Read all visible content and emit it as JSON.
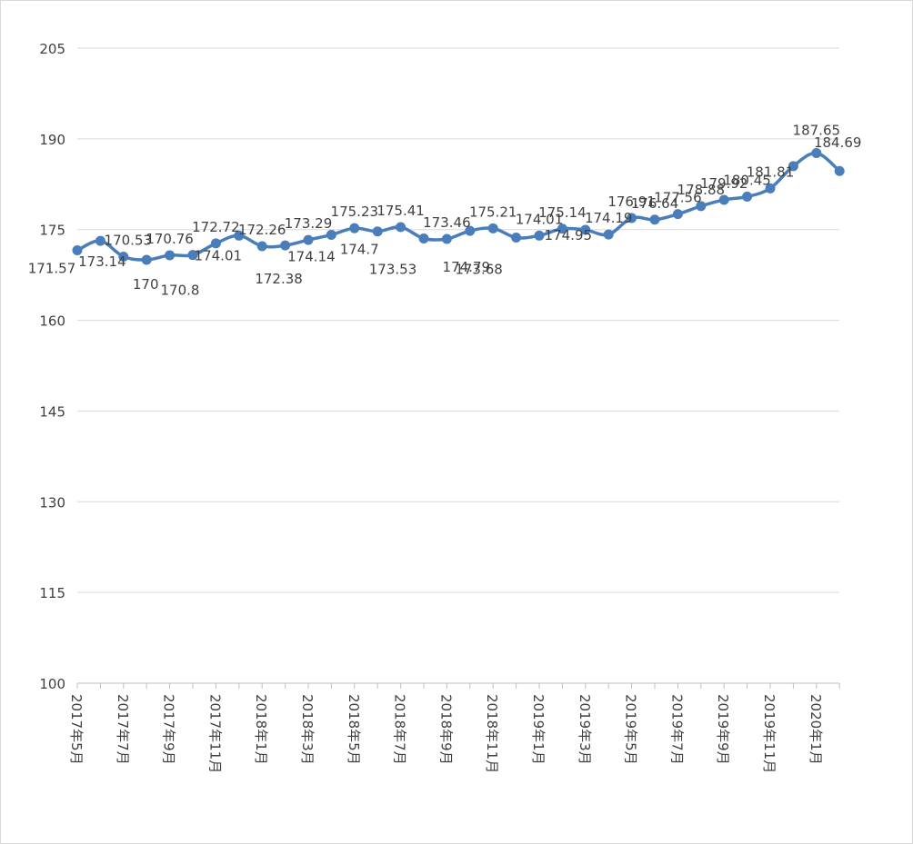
{
  "chart_data": {
    "type": "line",
    "title": "",
    "xlabel": "",
    "ylabel": "",
    "ylim": [
      100,
      205
    ],
    "yticks": [
      100,
      115,
      130,
      145,
      160,
      175,
      190,
      205
    ],
    "grid": true,
    "legend": "none",
    "line_color": "#4a7ebb",
    "categories": [
      "2017年5月",
      "2017年6月",
      "2017年7月",
      "2017年8月",
      "2017年9月",
      "2017年10月",
      "2017年11月",
      "2017年12月",
      "2018年1月",
      "2018年2月",
      "2018年3月",
      "2018年4月",
      "2018年5月",
      "2018年6月",
      "2018年7月",
      "2018年8月",
      "2018年9月",
      "2018年10月",
      "2018年11月",
      "2018年12月",
      "2019年1月",
      "2019年2月",
      "2019年3月",
      "2019年4月",
      "2019年5月",
      "2019年6月",
      "2019年7月",
      "2019年8月",
      "2019年9月",
      "2019年10月",
      "2019年11月",
      "2019年12月",
      "2020年1月",
      "2020年2月"
    ],
    "x_tick_labels": [
      "2017年5月",
      "2017年7月",
      "2017年9月",
      "2017年11月",
      "2018年1月",
      "2018年3月",
      "2018年5月",
      "2018年7月",
      "2018年9月",
      "2018年11月",
      "2019年1月",
      "2019年3月",
      "2019年5月",
      "2019年7月",
      "2019年9月",
      "2019年11月",
      "2020年1月"
    ],
    "values": [
      171.57,
      173.14,
      170.53,
      170,
      170.76,
      170.8,
      172.72,
      174.01,
      172.26,
      172.38,
      173.29,
      174.14,
      175.23,
      174.7,
      175.41,
      173.53,
      173.46,
      174.79,
      175.21,
      173.68,
      174.01,
      175.14,
      174.95,
      174.19,
      176.91,
      176.64,
      177.56,
      178.88,
      179.92,
      180.45,
      181.81,
      185.5,
      187.65,
      184.69
    ],
    "data_labels": [
      "171.57",
      "173.14",
      "170.53",
      "170",
      "170.76",
      "170.8",
      "172.72",
      "174.01",
      "172.26",
      "172.38",
      "173.29",
      "174.14",
      "175.23",
      "174.7",
      "175.41",
      "173.53",
      "173.46",
      "174.79",
      "175.21",
      "173.68",
      "174.01",
      "175.14",
      "174.95",
      "174.19",
      "176.91",
      "176.64",
      "177.56",
      "178.88",
      "179.92",
      "180.45",
      "181.81",
      "",
      "187.65",
      "184.69"
    ]
  }
}
